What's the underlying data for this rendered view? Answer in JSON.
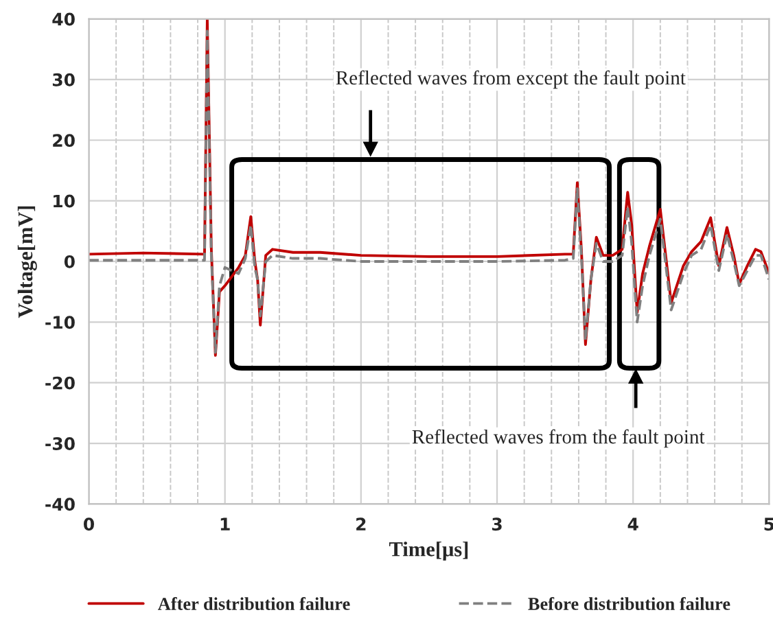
{
  "chart_data": {
    "type": "line",
    "xlabel": "Time[μs]",
    "ylabel": "Voltage[mV]",
    "xlim": [
      0,
      5
    ],
    "xticks": [
      0,
      1,
      2,
      3,
      4,
      5
    ],
    "ylim": [
      -40,
      40
    ],
    "yticks": [
      -40,
      -30,
      -20,
      -10,
      0,
      10,
      20,
      30,
      40
    ],
    "grid": true,
    "legend": "bottom",
    "annotations": [
      "Reflected waves from except the fault point",
      "Reflected waves from the fault point"
    ],
    "series": [
      {
        "name": "After distribution failure",
        "color": "#c00000",
        "line_style": "solid",
        "x": [
          0,
          0.4,
          0.85,
          0.87,
          0.89,
          0.9,
          0.93,
          0.96,
          1.0,
          1.1,
          1.15,
          1.19,
          1.22,
          1.24,
          1.26,
          1.3,
          1.35,
          1.5,
          1.7,
          2.0,
          2.5,
          3.0,
          3.5,
          3.56,
          3.59,
          3.62,
          3.65,
          3.69,
          3.73,
          3.78,
          3.85,
          3.92,
          3.96,
          3.99,
          4.03,
          4.07,
          4.12,
          4.2,
          4.28,
          4.37,
          4.43,
          4.5,
          4.57,
          4.63,
          4.69,
          4.74,
          4.78,
          4.84,
          4.9,
          4.94,
          5.0
        ],
        "values": [
          1.2,
          1.4,
          1.2,
          40,
          15,
          2,
          -15.5,
          -5,
          -4,
          -1,
          1,
          7.4,
          0,
          -3,
          -10.5,
          1,
          2,
          1.5,
          1.5,
          1,
          0.8,
          0.8,
          1.2,
          1.2,
          13,
          2,
          -13.7,
          -3,
          4,
          1,
          1,
          2,
          11.4,
          6,
          -8.4,
          -2,
          2.5,
          8.6,
          -6.8,
          -0.7,
          1.6,
          3.3,
          7.2,
          -0.7,
          5.6,
          1,
          -3.7,
          -0.7,
          2,
          1.6,
          -2
        ]
      },
      {
        "name": "Before distribution failure",
        "color": "#808080",
        "line_style": "dashed",
        "x": [
          0,
          0.4,
          0.85,
          0.87,
          0.89,
          0.9,
          0.93,
          0.96,
          1.0,
          1.1,
          1.15,
          1.19,
          1.22,
          1.24,
          1.26,
          1.3,
          1.35,
          1.5,
          1.7,
          2.0,
          2.5,
          3.0,
          3.5,
          3.56,
          3.59,
          3.62,
          3.65,
          3.69,
          3.73,
          3.78,
          3.85,
          3.92,
          3.96,
          3.99,
          4.03,
          4.07,
          4.12,
          4.2,
          4.28,
          4.37,
          4.43,
          4.5,
          4.57,
          4.63,
          4.69,
          4.74,
          4.78,
          4.84,
          4.9,
          4.94,
          5.0
        ],
        "values": [
          0.2,
          0.2,
          0.2,
          38,
          13,
          1,
          -15,
          -4,
          -1,
          -2,
          0.5,
          6,
          -1,
          -3,
          -9,
          0,
          1,
          0.5,
          0.5,
          0,
          0,
          0,
          0.2,
          0.5,
          12,
          1,
          -13,
          -3,
          3,
          0,
          0,
          1,
          9,
          3,
          -10,
          -4,
          1,
          7,
          -8,
          -2,
          1,
          2,
          6,
          -1.5,
          4.5,
          0,
          -4,
          -1.5,
          1,
          1,
          -3
        ]
      }
    ]
  }
}
